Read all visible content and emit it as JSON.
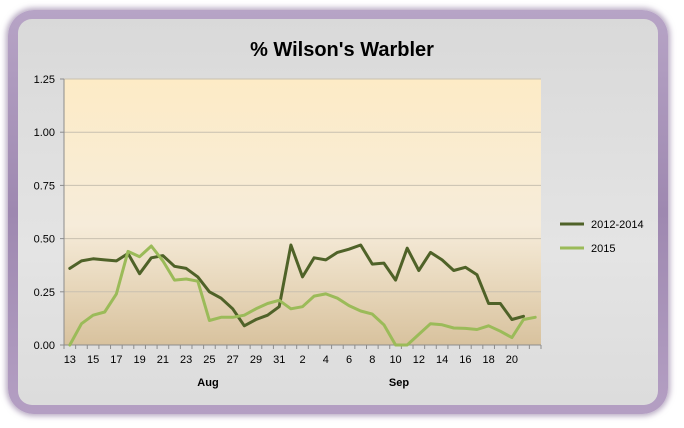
{
  "chart_data": {
    "type": "line",
    "title": "% Wilson's Warbler",
    "xlabel": "",
    "ylabel": "",
    "ylim": [
      0,
      1.25
    ],
    "yticks": [
      "0.00",
      "0.25",
      "0.50",
      "0.75",
      "1.00",
      "1.25"
    ],
    "x_tick_labels": [
      "13",
      "15",
      "17",
      "19",
      "21",
      "23",
      "25",
      "27",
      "29",
      "31",
      "2",
      "4",
      "6",
      "8",
      "10",
      "12",
      "14",
      "16",
      "18",
      "20"
    ],
    "month_labels": [
      "Aug",
      "Sep"
    ],
    "legend_position": "right",
    "series": [
      {
        "name": "2012-2014",
        "color": "#4f6228",
        "values": [
          0.36,
          0.395,
          0.405,
          0.4,
          0.395,
          0.43,
          0.335,
          0.41,
          0.42,
          0.37,
          0.36,
          0.32,
          0.25,
          0.22,
          0.17,
          0.09,
          0.12,
          0.14,
          0.18,
          0.47,
          0.32,
          0.41,
          0.4,
          0.435,
          0.45,
          0.47,
          0.38,
          0.385,
          0.305,
          0.455,
          0.35,
          0.435,
          0.4,
          0.35,
          0.365,
          0.33,
          0.195,
          0.195,
          0.12,
          0.135
        ]
      },
      {
        "name": "2015",
        "color": "#9bbb59",
        "values": [
          0.0,
          0.1,
          0.14,
          0.155,
          0.24,
          0.44,
          0.415,
          0.465,
          0.395,
          0.305,
          0.31,
          0.3,
          0.115,
          0.13,
          0.13,
          0.14,
          0.17,
          0.195,
          0.21,
          0.17,
          0.18,
          0.23,
          0.24,
          0.22,
          0.185,
          0.16,
          0.145,
          0.095,
          0.0,
          0.0,
          0.05,
          0.1,
          0.095,
          0.08,
          0.078,
          0.073,
          0.09,
          0.065,
          0.035,
          0.12,
          0.13
        ]
      }
    ]
  }
}
